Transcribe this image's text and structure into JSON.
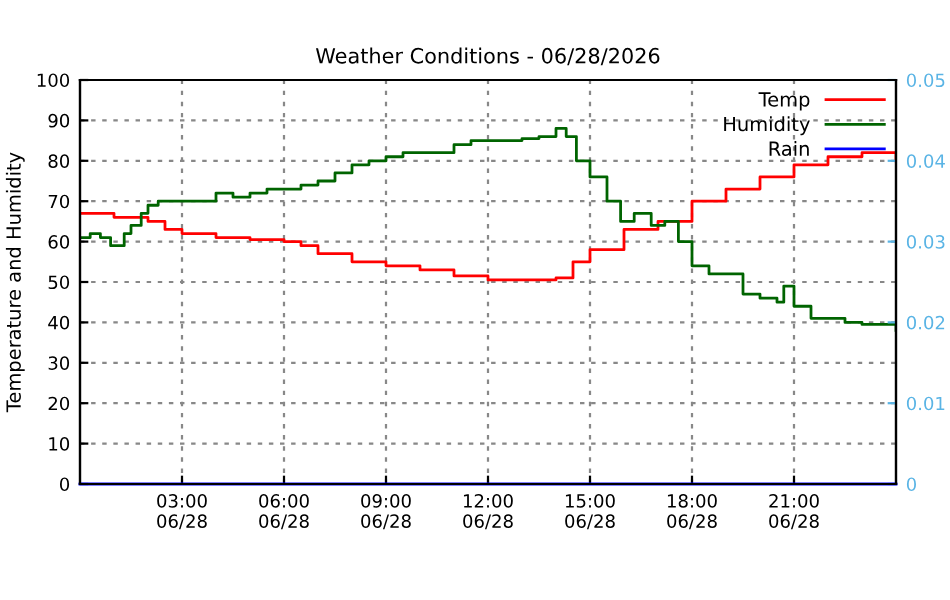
{
  "chart_data": {
    "type": "step",
    "title": "Weather Conditions - 06/28/2026",
    "ylabel": "Temperature and Humidity",
    "xlim": [
      "2026-06-28T00:00",
      "2026-06-29T00:00"
    ],
    "xticks": [
      {
        "value": "2026-06-28T03:00",
        "label": "03:00\n06/28"
      },
      {
        "value": "2026-06-28T06:00",
        "label": "06:00\n06/28"
      },
      {
        "value": "2026-06-28T09:00",
        "label": "09:00\n06/28"
      },
      {
        "value": "2026-06-28T12:00",
        "label": "12:00\n06/28"
      },
      {
        "value": "2026-06-28T15:00",
        "label": "15:00\n06/28"
      },
      {
        "value": "2026-06-28T18:00",
        "label": "18:00\n06/28"
      },
      {
        "value": "2026-06-28T21:00",
        "label": "21:00\n06/28"
      }
    ],
    "ylim": [
      0,
      100
    ],
    "yticks": [
      0,
      10,
      20,
      30,
      40,
      50,
      60,
      70,
      80,
      90,
      100
    ],
    "y2lim": [
      0,
      0.05
    ],
    "y2ticks": [
      0,
      0.01,
      0.02,
      0.03,
      0.04,
      0.05
    ],
    "grid": true,
    "legend": "top right",
    "line_style": "solid",
    "series": [
      {
        "name": "Temp",
        "color": "#ff0000",
        "x": [
          "2026-06-28T00:00",
          "2026-06-28T01:00",
          "2026-06-28T02:00",
          "2026-06-28T02:30",
          "2026-06-28T03:00",
          "2026-06-28T04:00",
          "2026-06-28T05:00",
          "2026-06-28T06:00",
          "2026-06-28T06:30",
          "2026-06-28T07:00",
          "2026-06-28T08:00",
          "2026-06-28T09:00",
          "2026-06-28T10:00",
          "2026-06-28T11:00",
          "2026-06-28T12:00",
          "2026-06-28T13:00",
          "2026-06-28T14:00",
          "2026-06-28T14:30",
          "2026-06-28T15:00",
          "2026-06-28T16:00",
          "2026-06-28T16:30",
          "2026-06-28T17:00",
          "2026-06-28T18:00",
          "2026-06-28T19:00",
          "2026-06-28T20:00",
          "2026-06-28T21:00",
          "2026-06-28T22:00",
          "2026-06-28T23:00",
          "2026-06-29T00:00"
        ],
        "values": [
          67,
          66,
          65,
          63,
          62,
          61,
          60.5,
          60,
          59,
          57,
          55,
          54,
          53,
          51.5,
          50.5,
          50.5,
          51,
          55,
          58,
          63,
          63,
          65,
          70,
          73,
          76,
          79,
          81,
          82,
          80
        ]
      },
      {
        "name": "Humidity",
        "color": "#006400",
        "x": [
          "2026-06-28T00:00",
          "2026-06-28T00:18",
          "2026-06-28T00:36",
          "2026-06-28T00:54",
          "2026-06-28T01:18",
          "2026-06-28T01:30",
          "2026-06-28T01:48",
          "2026-06-28T02:00",
          "2026-06-28T02:18",
          "2026-06-28T03:30",
          "2026-06-28T04:00",
          "2026-06-28T04:30",
          "2026-06-28T05:00",
          "2026-06-28T05:30",
          "2026-06-28T06:00",
          "2026-06-28T06:30",
          "2026-06-28T07:00",
          "2026-06-28T07:30",
          "2026-06-28T08:00",
          "2026-06-28T08:30",
          "2026-06-28T09:00",
          "2026-06-28T09:30",
          "2026-06-28T10:00",
          "2026-06-28T11:00",
          "2026-06-28T11:30",
          "2026-06-28T12:00",
          "2026-06-28T13:00",
          "2026-06-28T13:30",
          "2026-06-28T14:00",
          "2026-06-28T14:18",
          "2026-06-28T14:36",
          "2026-06-28T15:00",
          "2026-06-28T15:30",
          "2026-06-28T15:54",
          "2026-06-28T16:18",
          "2026-06-28T16:48",
          "2026-06-28T17:12",
          "2026-06-28T17:36",
          "2026-06-28T18:00",
          "2026-06-28T18:30",
          "2026-06-28T19:00",
          "2026-06-28T19:30",
          "2026-06-28T20:00",
          "2026-06-28T20:30",
          "2026-06-28T20:42",
          "2026-06-28T21:00",
          "2026-06-28T21:30",
          "2026-06-28T22:00",
          "2026-06-28T22:30",
          "2026-06-28T23:00",
          "2026-06-29T00:00"
        ],
        "values": [
          61,
          62,
          61,
          59,
          62,
          64,
          67,
          69,
          70,
          70,
          72,
          71,
          72,
          73,
          73,
          74,
          75,
          77,
          79,
          80,
          81,
          82,
          82,
          84,
          85,
          85,
          85.5,
          86,
          88,
          86,
          80,
          76,
          70,
          65,
          67,
          64,
          65,
          60,
          54,
          52,
          52,
          47,
          46,
          45,
          49,
          44,
          41,
          41,
          40,
          39.5,
          38
        ]
      },
      {
        "name": "Rain",
        "color": "#0000ff",
        "axis": "y2",
        "x": [
          "2026-06-28T00:00",
          "2026-06-29T00:00"
        ],
        "values": [
          0,
          0
        ]
      }
    ]
  }
}
